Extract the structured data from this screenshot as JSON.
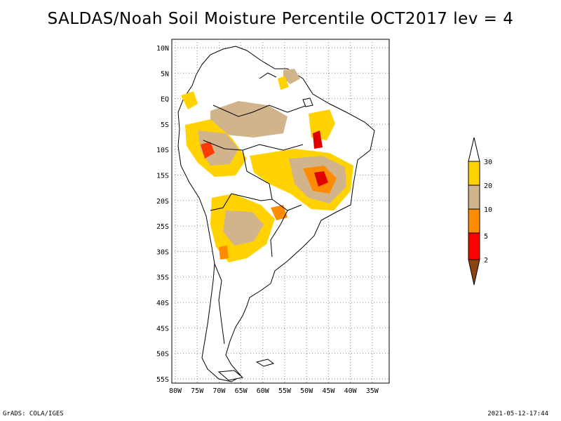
{
  "title": "SALDAS/Noah Soil Moisture Percentile OCT2017 lev = 4",
  "map": {
    "lat_labels": [
      "10N",
      "5N",
      "EQ",
      "5S",
      "10S",
      "15S",
      "20S",
      "25S",
      "30S",
      "35S",
      "40S",
      "45S",
      "50S",
      "55S"
    ],
    "lon_labels": [
      "80W",
      "75W",
      "70W",
      "65W",
      "60W",
      "55W",
      "50W",
      "45W",
      "40W",
      "35W"
    ],
    "grid": "dotted"
  },
  "legend": {
    "levels": [
      "30",
      "20",
      "10",
      "5",
      "2"
    ],
    "colors": {
      "above_30": "#ffffff",
      "20_30": "#ffd200",
      "10_20": "#d2b48c",
      "5_10": "#ff8c00",
      "2_5": "#ff0000",
      "below_2": "#8b4513"
    }
  },
  "footer": {
    "left": "GrADS: COLA/IGES",
    "right": "2021-05-12-17:44"
  }
}
